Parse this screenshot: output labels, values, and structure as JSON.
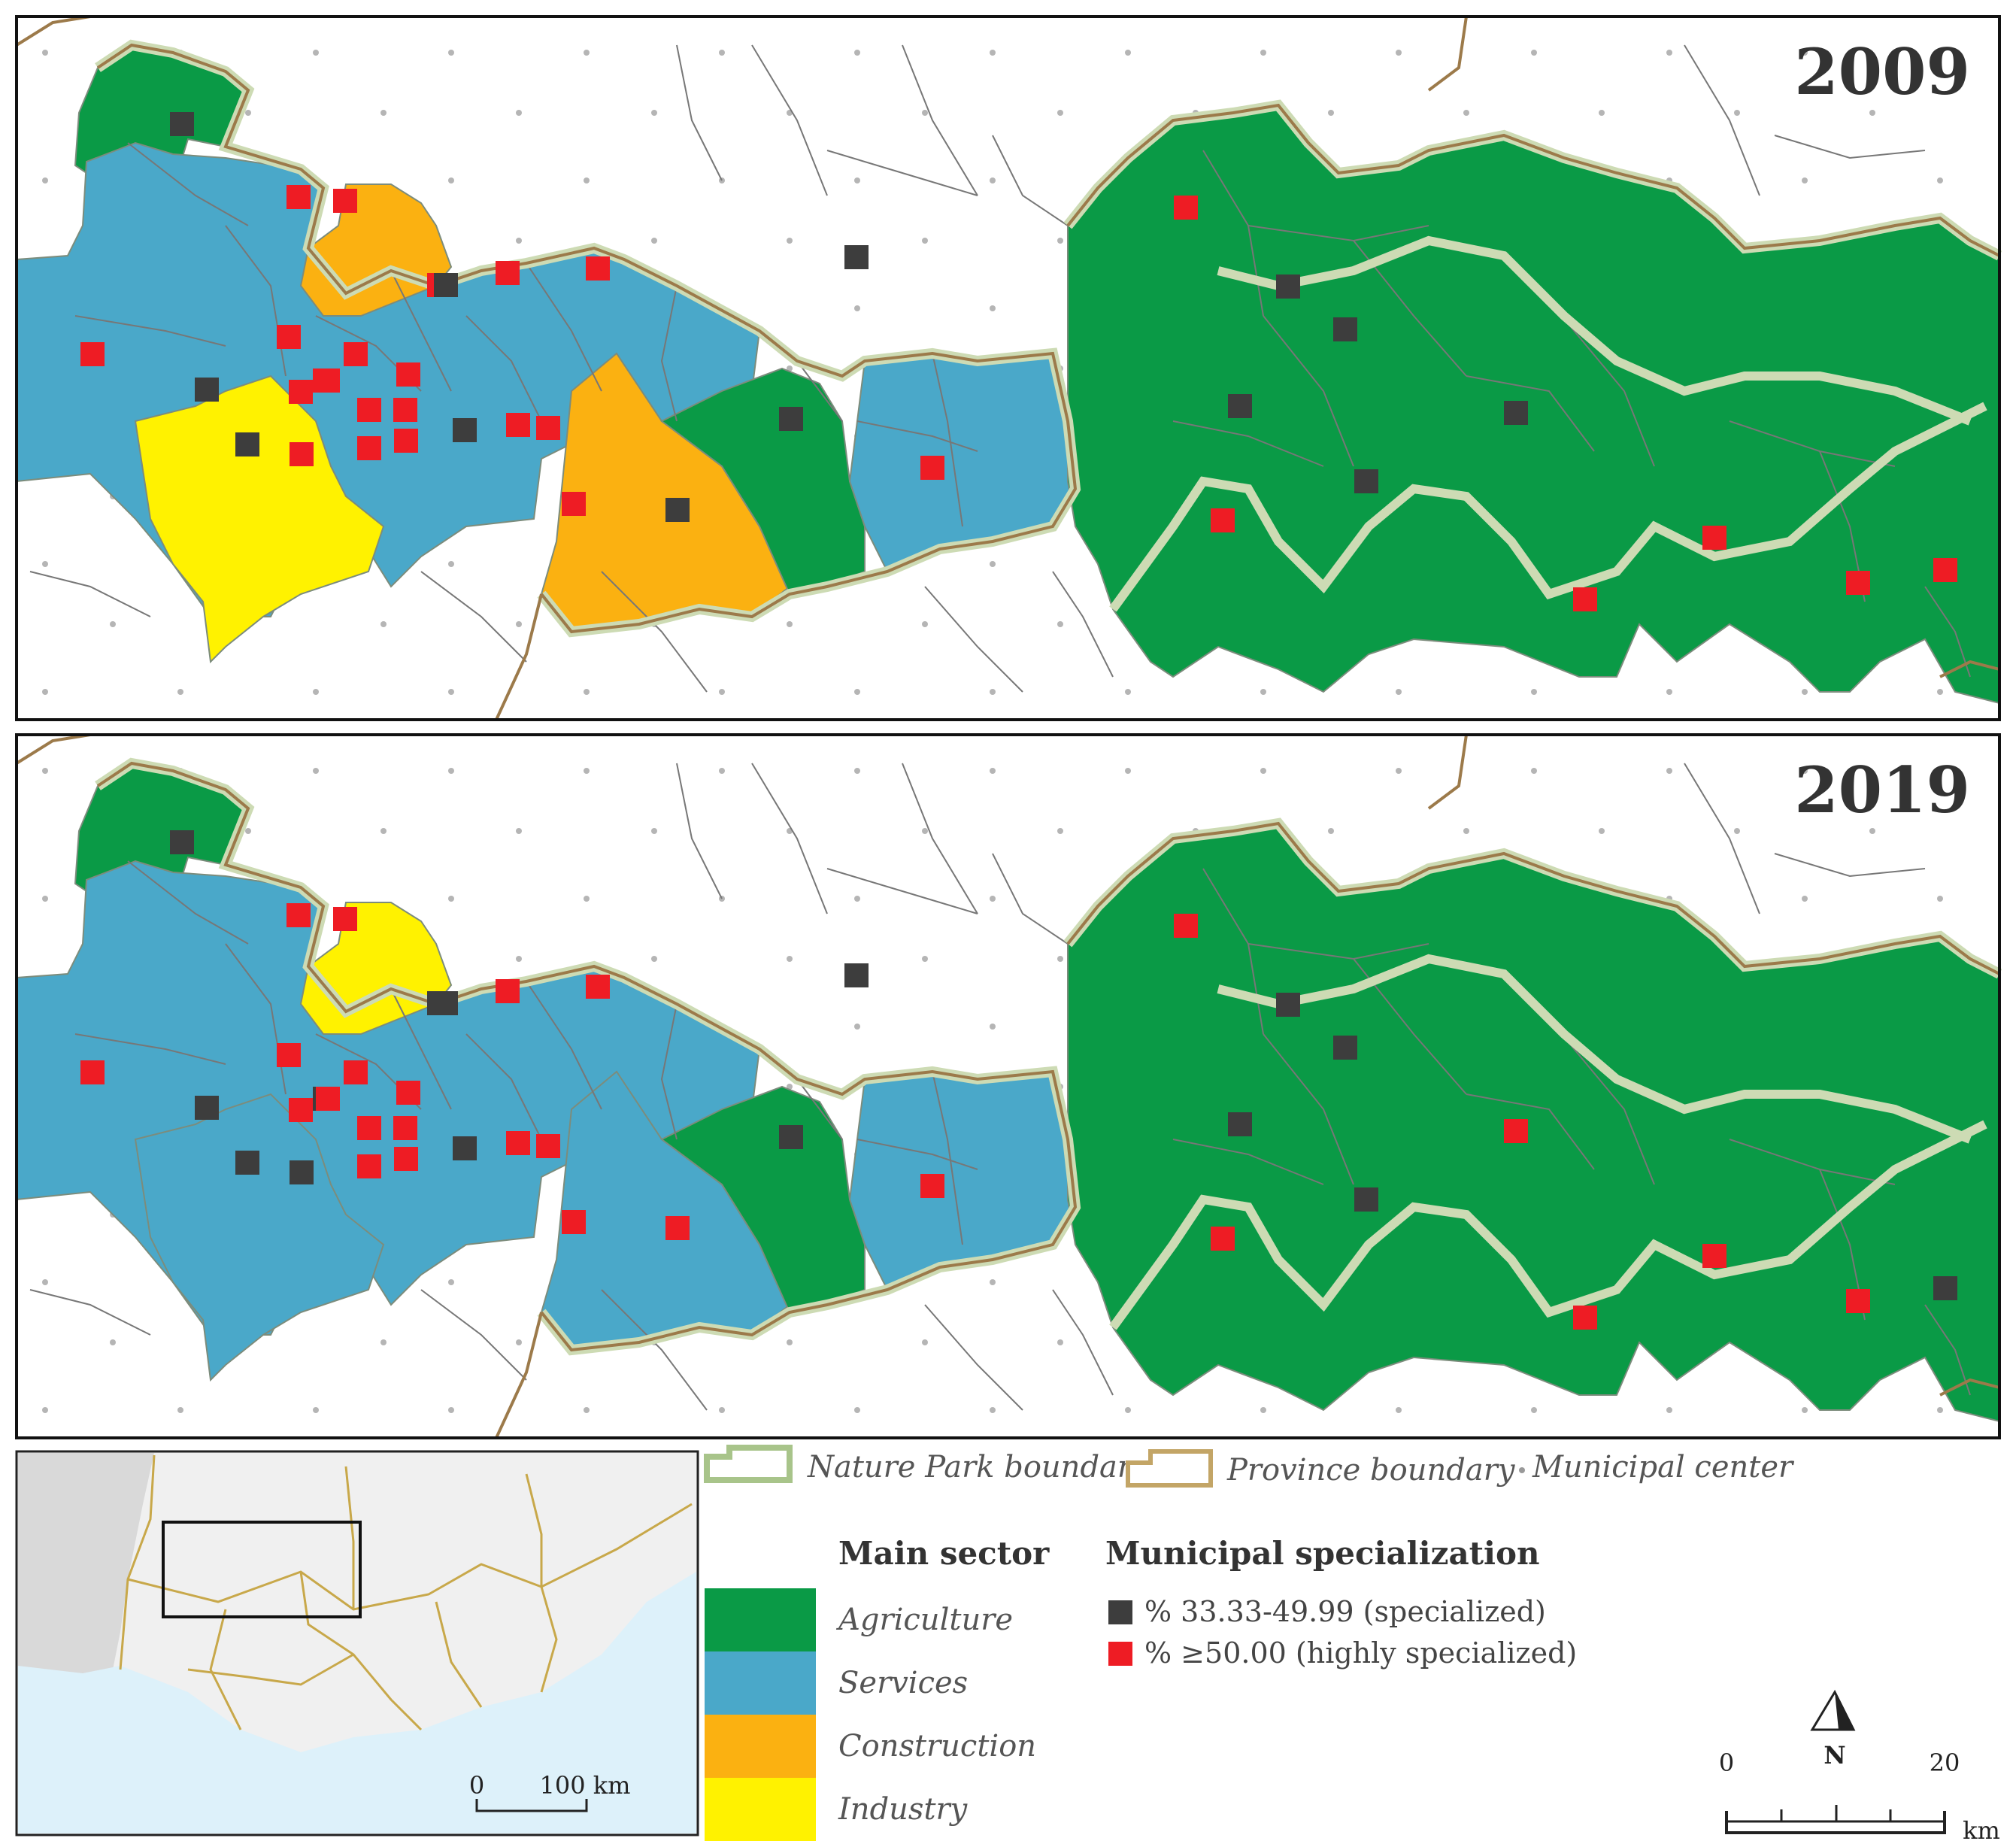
{
  "maps": [
    {
      "year": "2009",
      "regions": [
        {
          "name": "region-west-north",
          "sector": "agriculture"
        },
        {
          "name": "region-west-services",
          "sector": "services"
        },
        {
          "name": "region-north-construction",
          "sector": "construction"
        },
        {
          "name": "region-southwest-industry",
          "sector": "industry"
        },
        {
          "name": "region-center-construction",
          "sector": "construction"
        },
        {
          "name": "region-center-agriculture",
          "sector": "agriculture"
        },
        {
          "name": "region-center-services",
          "sector": "services"
        },
        {
          "name": "region-east-agriculture",
          "sector": "agriculture"
        }
      ],
      "markers": [
        {
          "n": 1,
          "level": "specialized"
        },
        {
          "n": 2,
          "level": "highly"
        },
        {
          "n": 3,
          "level": "highly"
        },
        {
          "n": 4,
          "level": "highly"
        },
        {
          "n": 5,
          "level": "specialized"
        },
        {
          "n": 6,
          "level": "highly"
        },
        {
          "n": 7,
          "level": "highly"
        },
        {
          "n": 8,
          "level": "specialized"
        },
        {
          "n": 9,
          "level": "highly"
        },
        {
          "n": 10,
          "level": "highly"
        },
        {
          "n": 11,
          "level": "highly"
        },
        {
          "n": 12,
          "level": "highly"
        },
        {
          "n": 13,
          "level": "highly"
        },
        {
          "n": 14,
          "level": "highly"
        },
        {
          "n": 15,
          "level": "highly"
        },
        {
          "n": 16,
          "level": "highly"
        },
        {
          "n": 17,
          "level": "specialized"
        },
        {
          "n": 18,
          "level": "highly"
        },
        {
          "n": 19,
          "level": "highly"
        },
        {
          "n": 20,
          "level": "highly"
        },
        {
          "n": 21,
          "level": "highly"
        },
        {
          "n": 22,
          "level": "highly"
        },
        {
          "n": 23,
          "level": "specialized"
        },
        {
          "n": 24,
          "level": "highly"
        },
        {
          "n": 25,
          "level": "highly"
        },
        {
          "n": 26,
          "level": "specialized"
        },
        {
          "n": 27,
          "level": "highly"
        },
        {
          "n": 28,
          "level": "specialized"
        },
        {
          "n": 29,
          "level": "specialized"
        },
        {
          "n": 30,
          "level": "highly"
        },
        {
          "n": 31,
          "level": "highly"
        },
        {
          "n": 32,
          "level": "specialized"
        },
        {
          "n": 33,
          "level": "specialized"
        },
        {
          "n": 34,
          "level": "specialized"
        },
        {
          "n": 35,
          "level": "specialized"
        },
        {
          "n": 36,
          "level": "specialized"
        },
        {
          "n": 37,
          "level": "highly"
        },
        {
          "n": 38,
          "level": "highly"
        },
        {
          "n": 39,
          "level": "highly"
        },
        {
          "n": 40,
          "level": "highly"
        },
        {
          "n": 41,
          "level": "highly"
        }
      ]
    },
    {
      "year": "2019",
      "regions": [
        {
          "name": "region-west-north",
          "sector": "agriculture"
        },
        {
          "name": "region-west-services",
          "sector": "services"
        },
        {
          "name": "region-north-construction",
          "sector": "industry"
        },
        {
          "name": "region-southwest-industry",
          "sector": "services"
        },
        {
          "name": "region-center-construction",
          "sector": "services"
        },
        {
          "name": "region-center-agriculture",
          "sector": "agriculture"
        },
        {
          "name": "region-center-services",
          "sector": "services"
        },
        {
          "name": "region-east-agriculture",
          "sector": "agriculture"
        }
      ],
      "markers": [
        {
          "n": 1,
          "level": "specialized"
        },
        {
          "n": 2,
          "level": "highly"
        },
        {
          "n": 3,
          "level": "highly"
        },
        {
          "n": 4,
          "level": "specialized"
        },
        {
          "n": 5,
          "level": "specialized"
        },
        {
          "n": 6,
          "level": "highly"
        },
        {
          "n": 7,
          "level": "highly"
        },
        {
          "n": 8,
          "level": "specialized"
        },
        {
          "n": 9,
          "level": "highly"
        },
        {
          "n": 10,
          "level": "highly"
        },
        {
          "n": 11,
          "level": "highly"
        },
        {
          "n": 12,
          "level": "highly"
        },
        {
          "n": 13,
          "level": "specialized"
        },
        {
          "n": 14,
          "level": "highly"
        },
        {
          "n": 15,
          "level": "highly"
        },
        {
          "n": 16,
          "level": "highly"
        },
        {
          "n": 17,
          "level": "specialized"
        },
        {
          "n": 18,
          "level": "highly"
        },
        {
          "n": 19,
          "level": "highly"
        },
        {
          "n": 20,
          "level": "highly"
        },
        {
          "n": 21,
          "level": "highly"
        },
        {
          "n": 22,
          "level": "highly"
        },
        {
          "n": 23,
          "level": "specialized"
        },
        {
          "n": 24,
          "level": "highly"
        },
        {
          "n": 25,
          "level": "specialized"
        },
        {
          "n": 26,
          "level": "specialized"
        },
        {
          "n": 27,
          "level": "highly"
        },
        {
          "n": 28,
          "level": "highly"
        },
        {
          "n": 29,
          "level": "specialized"
        },
        {
          "n": 30,
          "level": "highly"
        },
        {
          "n": 31,
          "level": "highly"
        },
        {
          "n": 32,
          "level": "specialized"
        },
        {
          "n": 33,
          "level": "specialized"
        },
        {
          "n": 34,
          "level": "specialized"
        },
        {
          "n": 35,
          "level": "specialized"
        },
        {
          "n": 36,
          "level": "highly"
        },
        {
          "n": 37,
          "level": "highly"
        },
        {
          "n": 38,
          "level": "highly"
        },
        {
          "n": 39,
          "level": "highly"
        },
        {
          "n": 40,
          "level": "highly"
        },
        {
          "n": 41,
          "level": "specialized"
        }
      ]
    }
  ],
  "legend": {
    "nature_park": "Nature Park boundary",
    "province": "Province boundary",
    "municipal_center": "Municipal center",
    "main_sector_title": "Main sector",
    "sectors": [
      {
        "key": "agriculture",
        "label": "Agriculture",
        "color": "#0a9a46"
      },
      {
        "key": "services",
        "label": "Services",
        "color": "#4aa8c9"
      },
      {
        "key": "construction",
        "label": "Construction",
        "color": "#fbb111"
      },
      {
        "key": "industry",
        "label": "Industry",
        "color": "#fff200"
      }
    ],
    "specialization_title": "Municipal specialization",
    "specialized": "% 33.33-49.99 (specialized)",
    "highly": "% ≥50.00 (highly specialized)",
    "specialized_color": "#3d3d3d",
    "highly_color": "#ee1c24"
  },
  "inset": {
    "scale_zero": "0",
    "scale_label": "100 km"
  },
  "scalebar": {
    "zero": "0",
    "max": "20",
    "unit": "km",
    "north": "N"
  }
}
